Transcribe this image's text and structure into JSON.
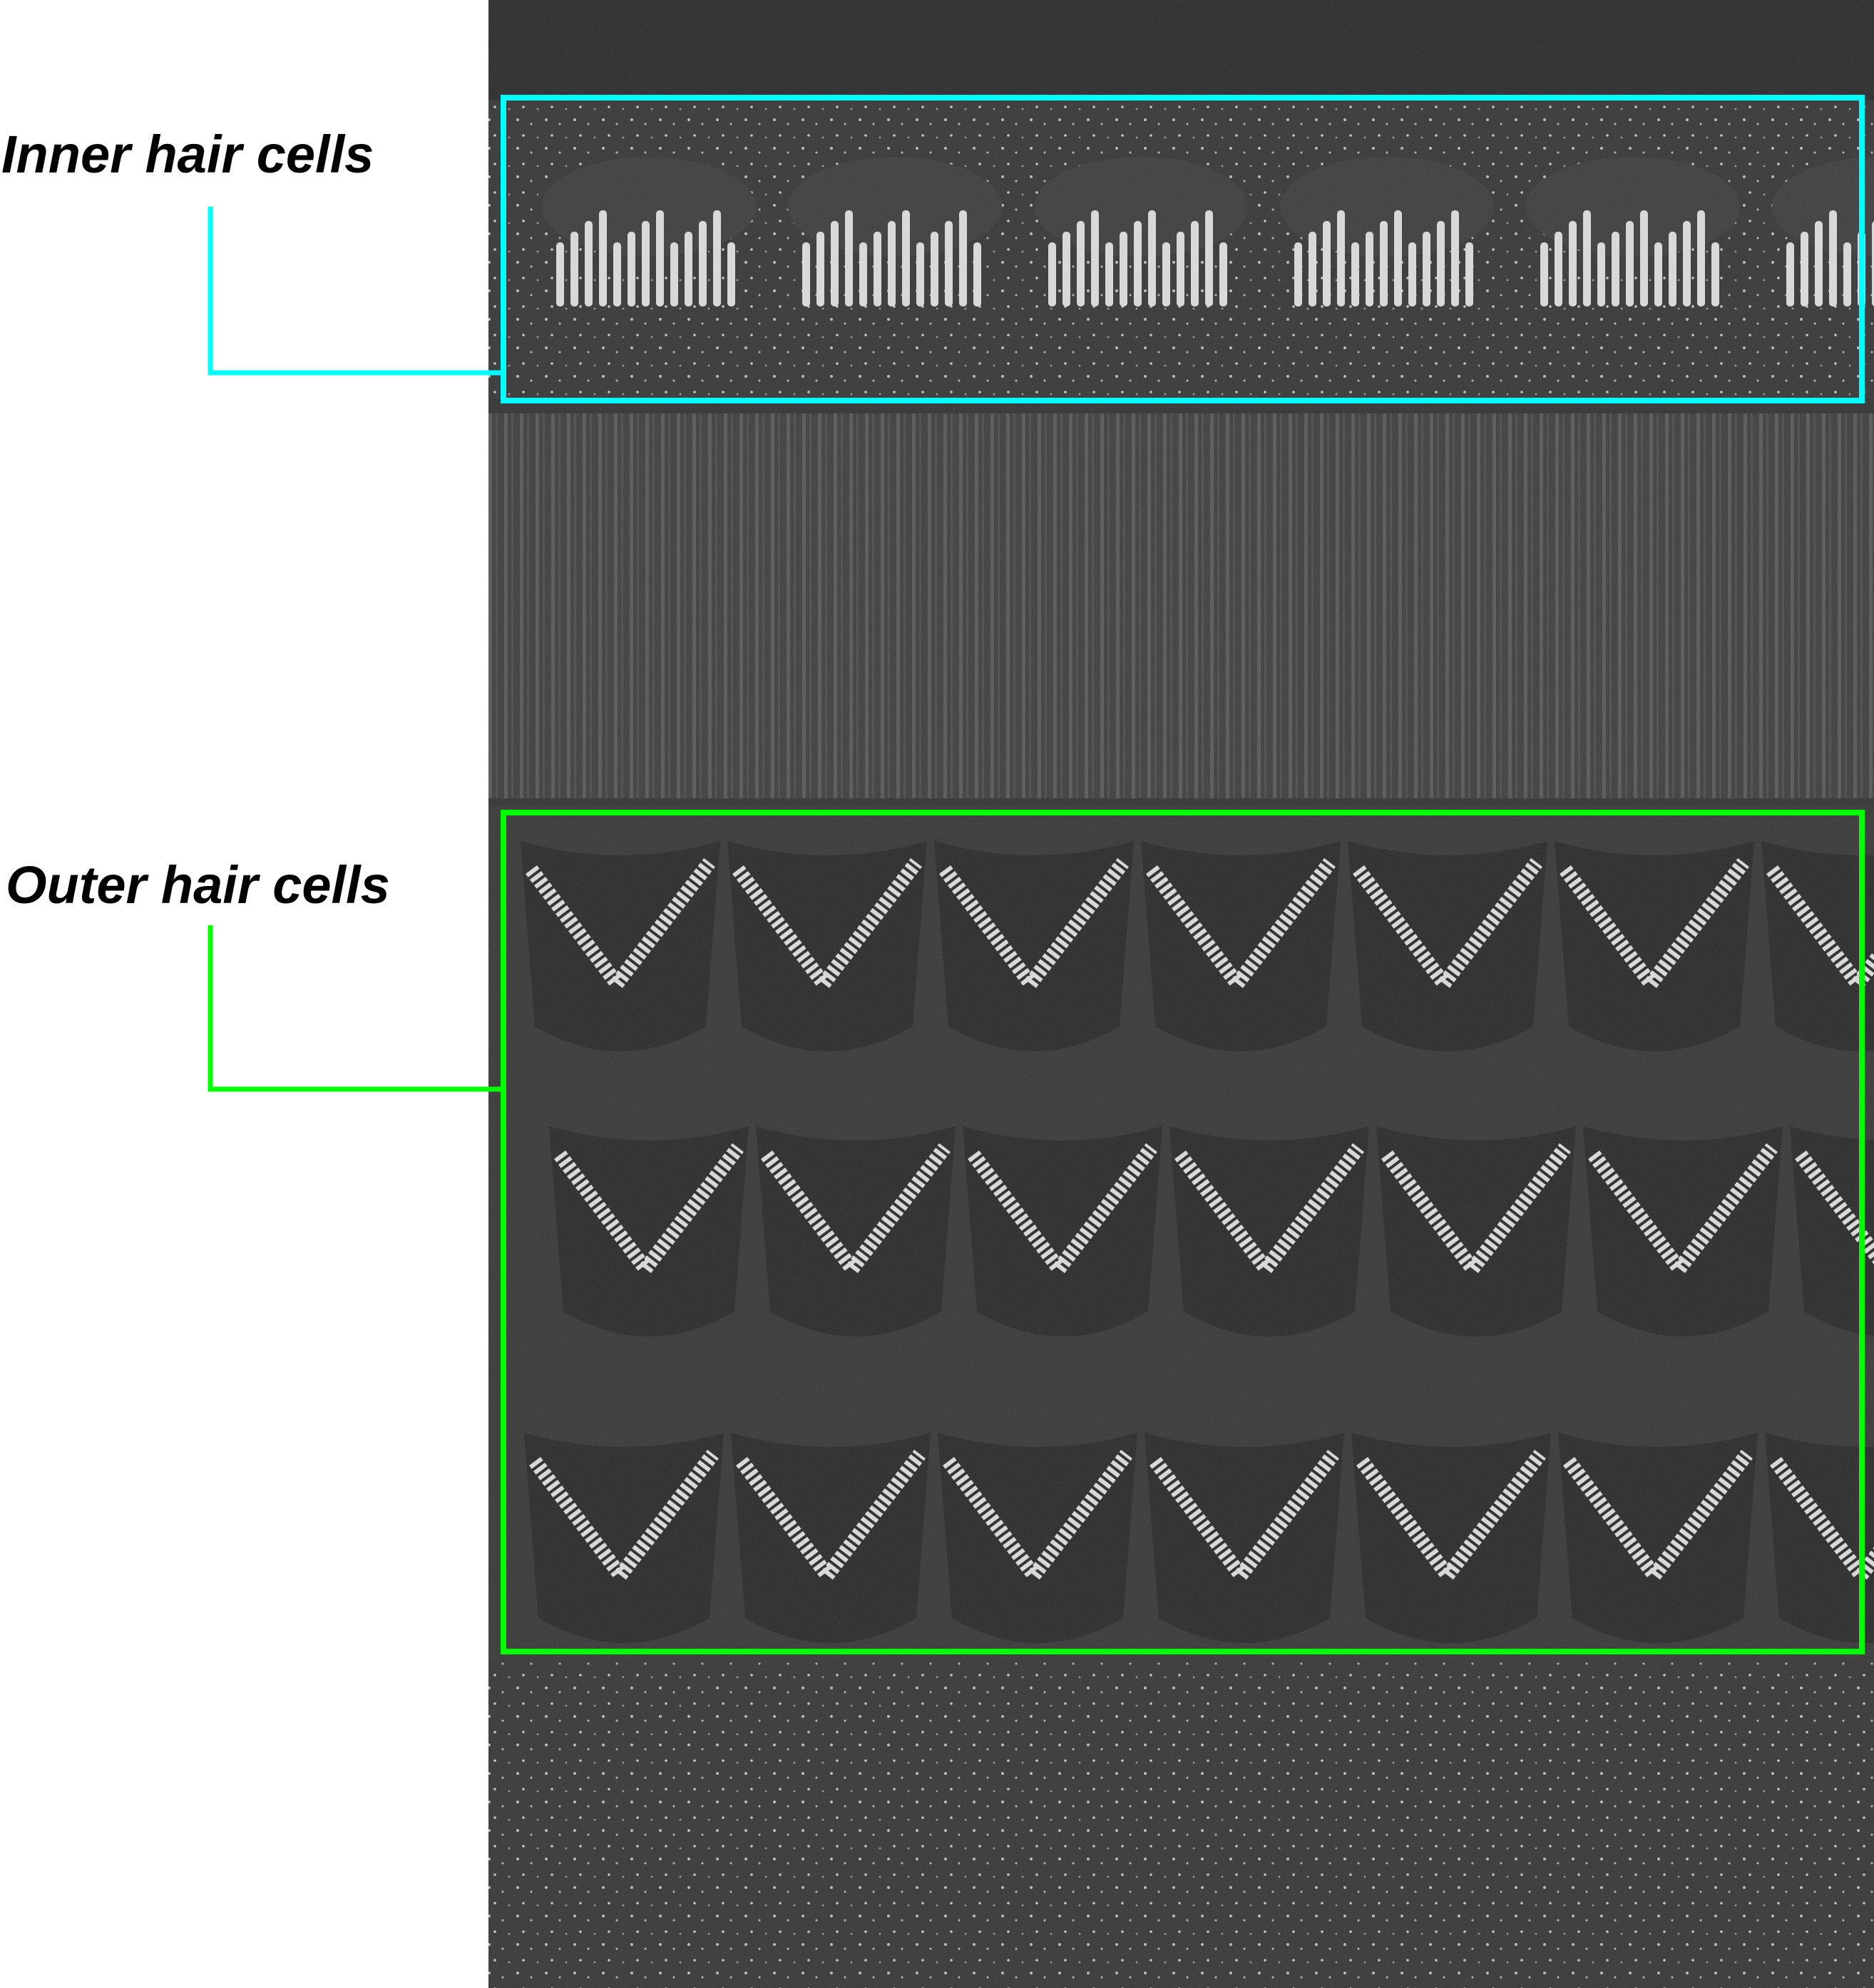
{
  "labels": {
    "inner": "Inner hair cells",
    "outer": "Outer hair cells"
  },
  "colors": {
    "inner_box": "#00ffff",
    "outer_box": "#00ff00",
    "micrograph_base": "#2e2e2e",
    "stereocilia": "#dcdcdc"
  },
  "icons": [
    "sem-micrograph",
    "inner-hair-cells-box",
    "outer-hair-cells-box"
  ]
}
